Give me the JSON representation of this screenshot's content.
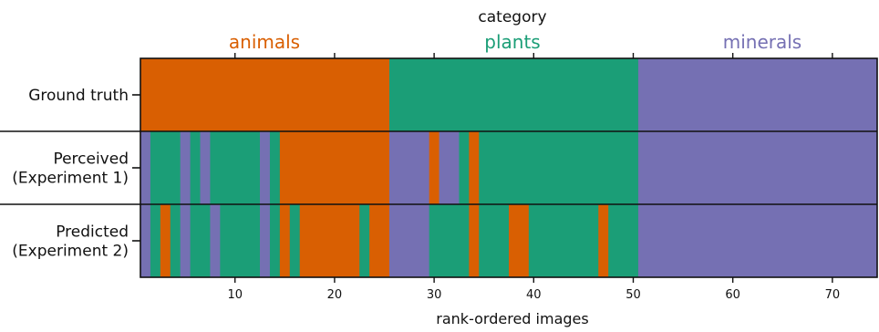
{
  "chart_data": {
    "type": "heatmap",
    "title": "category",
    "xlabel": "rank-ordered images",
    "x_range": [
      0.5,
      74.5
    ],
    "x_ticks": [
      10,
      20,
      30,
      40,
      50,
      60,
      70
    ],
    "categories": [
      {
        "key": "animals",
        "label": "animals",
        "color": "#d95f02",
        "top_ticks": [
          10,
          20
        ]
      },
      {
        "key": "plants",
        "label": "plants",
        "color": "#1b9e77",
        "top_ticks": [
          30,
          40,
          50
        ]
      },
      {
        "key": "minerals",
        "label": "minerals",
        "color": "#7570b3",
        "top_ticks": [
          60,
          70
        ]
      }
    ],
    "rows": [
      {
        "label_lines": [
          "Ground truth"
        ],
        "segments": [
          {
            "start": 1,
            "end": 25,
            "category": "animals"
          },
          {
            "start": 26,
            "end": 50,
            "category": "plants"
          },
          {
            "start": 51,
            "end": 74,
            "category": "minerals"
          }
        ]
      },
      {
        "label_lines": [
          "Perceived",
          "(Experiment 1)"
        ],
        "segments": [
          {
            "start": 1,
            "end": 1,
            "category": "minerals"
          },
          {
            "start": 2,
            "end": 4,
            "category": "plants"
          },
          {
            "start": 5,
            "end": 5,
            "category": "minerals"
          },
          {
            "start": 6,
            "end": 6,
            "category": "plants"
          },
          {
            "start": 7,
            "end": 7,
            "category": "minerals"
          },
          {
            "start": 8,
            "end": 12,
            "category": "plants"
          },
          {
            "start": 13,
            "end": 13,
            "category": "minerals"
          },
          {
            "start": 14,
            "end": 14,
            "category": "plants"
          },
          {
            "start": 15,
            "end": 25,
            "category": "animals"
          },
          {
            "start": 26,
            "end": 29,
            "category": "minerals"
          },
          {
            "start": 30,
            "end": 30,
            "category": "animals"
          },
          {
            "start": 31,
            "end": 32,
            "category": "minerals"
          },
          {
            "start": 33,
            "end": 33,
            "category": "plants"
          },
          {
            "start": 34,
            "end": 34,
            "category": "animals"
          },
          {
            "start": 35,
            "end": 50,
            "category": "plants"
          },
          {
            "start": 51,
            "end": 74,
            "category": "minerals"
          }
        ]
      },
      {
        "label_lines": [
          "Predicted",
          "(Experiment 2)"
        ],
        "segments": [
          {
            "start": 1,
            "end": 1,
            "category": "minerals"
          },
          {
            "start": 2,
            "end": 2,
            "category": "plants"
          },
          {
            "start": 3,
            "end": 3,
            "category": "animals"
          },
          {
            "start": 4,
            "end": 4,
            "category": "plants"
          },
          {
            "start": 5,
            "end": 5,
            "category": "minerals"
          },
          {
            "start": 6,
            "end": 7,
            "category": "plants"
          },
          {
            "start": 8,
            "end": 8,
            "category": "minerals"
          },
          {
            "start": 9,
            "end": 12,
            "category": "plants"
          },
          {
            "start": 13,
            "end": 13,
            "category": "minerals"
          },
          {
            "start": 14,
            "end": 14,
            "category": "plants"
          },
          {
            "start": 15,
            "end": 15,
            "category": "animals"
          },
          {
            "start": 16,
            "end": 16,
            "category": "plants"
          },
          {
            "start": 17,
            "end": 22,
            "category": "animals"
          },
          {
            "start": 23,
            "end": 23,
            "category": "plants"
          },
          {
            "start": 24,
            "end": 25,
            "category": "animals"
          },
          {
            "start": 26,
            "end": 29,
            "category": "minerals"
          },
          {
            "start": 30,
            "end": 33,
            "category": "plants"
          },
          {
            "start": 34,
            "end": 34,
            "category": "animals"
          },
          {
            "start": 35,
            "end": 37,
            "category": "plants"
          },
          {
            "start": 38,
            "end": 39,
            "category": "animals"
          },
          {
            "start": 40,
            "end": 46,
            "category": "plants"
          },
          {
            "start": 47,
            "end": 47,
            "category": "animals"
          },
          {
            "start": 48,
            "end": 50,
            "category": "plants"
          },
          {
            "start": 51,
            "end": 74,
            "category": "minerals"
          }
        ]
      }
    ]
  }
}
